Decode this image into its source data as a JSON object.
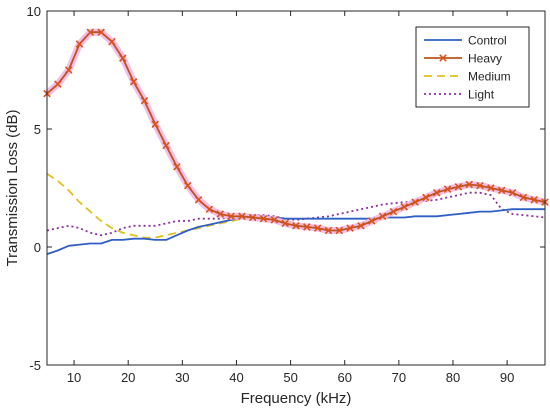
{
  "chart_data": {
    "type": "line",
    "title": "",
    "xlabel": "Frequency (kHz)",
    "ylabel": "Transmission Loss (dB)",
    "xlim": [
      5,
      97
    ],
    "ylim": [
      -5,
      10
    ],
    "xticks": [
      10,
      20,
      30,
      40,
      50,
      60,
      70,
      80,
      90
    ],
    "yticks": [
      -5,
      0,
      5,
      10
    ],
    "grid": false,
    "legend_position": "top-right",
    "series": [
      {
        "name": "Control",
        "color": "#2f5fc4",
        "style": "solid",
        "marker": "none",
        "x": [
          5,
          7,
          9,
          11,
          13,
          15,
          17,
          19,
          21,
          23,
          25,
          27,
          29,
          31,
          33,
          35,
          37,
          39,
          41,
          43,
          45,
          47,
          49,
          51,
          53,
          55,
          57,
          59,
          61,
          63,
          65,
          67,
          69,
          71,
          73,
          75,
          77,
          79,
          81,
          83,
          85,
          87,
          89,
          91,
          93,
          95,
          97
        ],
        "y": [
          -0.3,
          -0.15,
          0.05,
          0.1,
          0.15,
          0.15,
          0.3,
          0.3,
          0.35,
          0.35,
          0.3,
          0.3,
          0.5,
          0.7,
          0.85,
          0.95,
          1.05,
          1.15,
          1.25,
          1.3,
          1.3,
          1.25,
          1.2,
          1.2,
          1.2,
          1.2,
          1.2,
          1.2,
          1.2,
          1.2,
          1.2,
          1.25,
          1.25,
          1.25,
          1.3,
          1.3,
          1.3,
          1.35,
          1.4,
          1.45,
          1.5,
          1.5,
          1.55,
          1.6,
          1.6,
          1.6,
          1.6
        ]
      },
      {
        "name": "Heavy",
        "color": "#c0521c",
        "marker_color": "#d95319",
        "style": "solid",
        "marker": "x",
        "x": [
          5,
          7,
          9,
          11,
          13,
          15,
          17,
          19,
          21,
          23,
          25,
          27,
          29,
          31,
          33,
          35,
          37,
          39,
          41,
          43,
          45,
          47,
          49,
          51,
          53,
          55,
          57,
          59,
          61,
          63,
          65,
          67,
          69,
          71,
          73,
          75,
          77,
          79,
          81,
          83,
          85,
          87,
          89,
          91,
          93,
          95,
          97
        ],
        "y": [
          6.5,
          6.9,
          7.5,
          8.6,
          9.1,
          9.1,
          8.7,
          8.0,
          7.0,
          6.2,
          5.2,
          4.3,
          3.4,
          2.6,
          2.0,
          1.6,
          1.4,
          1.3,
          1.3,
          1.25,
          1.2,
          1.15,
          1.0,
          0.9,
          0.85,
          0.8,
          0.7,
          0.7,
          0.8,
          0.9,
          1.1,
          1.3,
          1.5,
          1.7,
          1.9,
          2.1,
          2.3,
          2.45,
          2.55,
          2.65,
          2.6,
          2.5,
          2.4,
          2.3,
          2.1,
          2.0,
          1.9
        ]
      },
      {
        "name": "Medium",
        "color": "#e0c020",
        "style": "dashed",
        "marker": "none",
        "x": [
          5,
          7,
          9,
          11,
          13,
          15,
          17,
          19,
          21,
          23,
          25,
          27,
          29,
          31,
          33,
          35,
          37,
          39,
          41,
          43,
          45,
          47,
          49,
          51,
          53,
          55,
          57,
          59,
          61,
          63,
          65,
          67,
          69,
          71,
          73,
          75,
          77,
          79,
          81,
          83,
          85,
          87,
          89,
          91,
          93,
          95,
          97
        ],
        "y": [
          3.1,
          2.8,
          2.4,
          1.9,
          1.5,
          1.1,
          0.8,
          0.6,
          0.5,
          0.4,
          0.4,
          0.5,
          0.6,
          0.7,
          0.8,
          0.9,
          1.0,
          1.1,
          1.2,
          1.2,
          1.25,
          1.2,
          1.1,
          1.0,
          0.9,
          0.85,
          0.8,
          0.8,
          0.85,
          0.95,
          1.1,
          1.25,
          1.4,
          1.6,
          1.8,
          2.0,
          2.2,
          2.4,
          2.5,
          2.55,
          2.5,
          2.45,
          2.4,
          2.3,
          2.2,
          2.05,
          1.9
        ]
      },
      {
        "name": "Light",
        "color": "#8b2fa0",
        "style": "dotted",
        "marker": "none",
        "x": [
          5,
          7,
          9,
          11,
          13,
          15,
          17,
          19,
          21,
          23,
          25,
          27,
          29,
          31,
          33,
          35,
          37,
          39,
          41,
          43,
          45,
          47,
          49,
          51,
          53,
          55,
          57,
          59,
          61,
          63,
          65,
          67,
          69,
          71,
          73,
          75,
          77,
          79,
          81,
          83,
          85,
          87,
          89,
          91,
          93,
          95,
          97
        ],
        "y": [
          0.7,
          0.8,
          0.9,
          0.8,
          0.6,
          0.5,
          0.6,
          0.8,
          0.9,
          0.9,
          0.9,
          1.0,
          1.1,
          1.1,
          1.2,
          1.2,
          1.2,
          1.25,
          1.3,
          1.35,
          1.35,
          1.3,
          1.2,
          1.15,
          1.2,
          1.25,
          1.3,
          1.4,
          1.5,
          1.6,
          1.7,
          1.8,
          1.85,
          1.9,
          1.9,
          1.95,
          2.0,
          2.1,
          2.2,
          2.3,
          2.3,
          2.2,
          1.6,
          1.4,
          1.35,
          1.3,
          1.25
        ]
      }
    ]
  }
}
